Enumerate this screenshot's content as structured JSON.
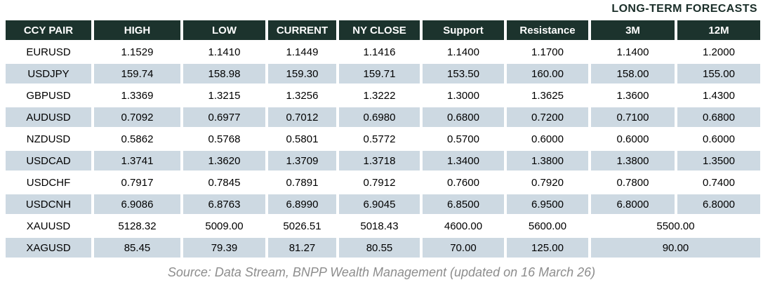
{
  "chart_data": {
    "type": "table",
    "title": "LONG-TERM FORECASTS",
    "columns": [
      "CCY PAIR",
      "HIGH",
      "LOW",
      "CURRENT",
      "NY CLOSE",
      "Support",
      "Resistance",
      "3M",
      "12M"
    ],
    "rows": [
      {
        "pair": "EURUSD",
        "high": "1.1529",
        "low": "1.1410",
        "current": "1.1449",
        "ny_close": "1.1416",
        "support": "1.1400",
        "resistance": "1.1700",
        "m3": "1.1400",
        "m12": "1.2000"
      },
      {
        "pair": "USDJPY",
        "high": "159.74",
        "low": "158.98",
        "current": "159.30",
        "ny_close": "159.71",
        "support": "153.50",
        "resistance": "160.00",
        "m3": "158.00",
        "m12": "155.00"
      },
      {
        "pair": "GBPUSD",
        "high": "1.3369",
        "low": "1.3215",
        "current": "1.3256",
        "ny_close": "1.3222",
        "support": "1.3000",
        "resistance": "1.3625",
        "m3": "1.3600",
        "m12": "1.4300"
      },
      {
        "pair": "AUDUSD",
        "high": "0.7092",
        "low": "0.6977",
        "current": "0.7012",
        "ny_close": "0.6980",
        "support": "0.6800",
        "resistance": "0.7200",
        "m3": "0.7100",
        "m12": "0.6800"
      },
      {
        "pair": "NZDUSD",
        "high": "0.5862",
        "low": "0.5768",
        "current": "0.5801",
        "ny_close": "0.5772",
        "support": "0.5700",
        "resistance": "0.6000",
        "m3": "0.6000",
        "m12": "0.6000"
      },
      {
        "pair": "USDCAD",
        "high": "1.3741",
        "low": "1.3620",
        "current": "1.3709",
        "ny_close": "1.3718",
        "support": "1.3400",
        "resistance": "1.3800",
        "m3": "1.3800",
        "m12": "1.3500"
      },
      {
        "pair": "USDCHF",
        "high": "0.7917",
        "low": "0.7845",
        "current": "0.7891",
        "ny_close": "0.7912",
        "support": "0.7600",
        "resistance": "0.7920",
        "m3": "0.7800",
        "m12": "0.7400"
      },
      {
        "pair": "USDCNH",
        "high": "6.9086",
        "low": "6.8763",
        "current": "6.8990",
        "ny_close": "6.9045",
        "support": "6.8500",
        "resistance": "6.9500",
        "m3": "6.8000",
        "m12": "6.8000"
      },
      {
        "pair": "XAUUSD",
        "high": "5128.32",
        "low": "5009.00",
        "current": "5026.51",
        "ny_close": "5018.43",
        "support": "4600.00",
        "resistance": "5600.00",
        "m3_m12": "5500.00"
      },
      {
        "pair": "XAGUSD",
        "high": "85.45",
        "low": "79.39",
        "current": "81.27",
        "ny_close": "80.55",
        "support": "70.00",
        "resistance": "125.00",
        "m3_m12": "90.00"
      }
    ],
    "source": "Source: Data Stream, BNPP Wealth Management (updated on 16 March 26)",
    "layout": {
      "stripe_rows": "alternating starting second row",
      "merged_cells": "3M and 12M merged for XAUUSD and XAGUSD"
    }
  },
  "colors": {
    "header_bg": "#1c332d",
    "header_text": "#ffffff",
    "stripe_bg": "#cdd9e2",
    "title_text": "#1a2e29",
    "source_text": "#8d8d8d",
    "body_text": "#000000"
  }
}
